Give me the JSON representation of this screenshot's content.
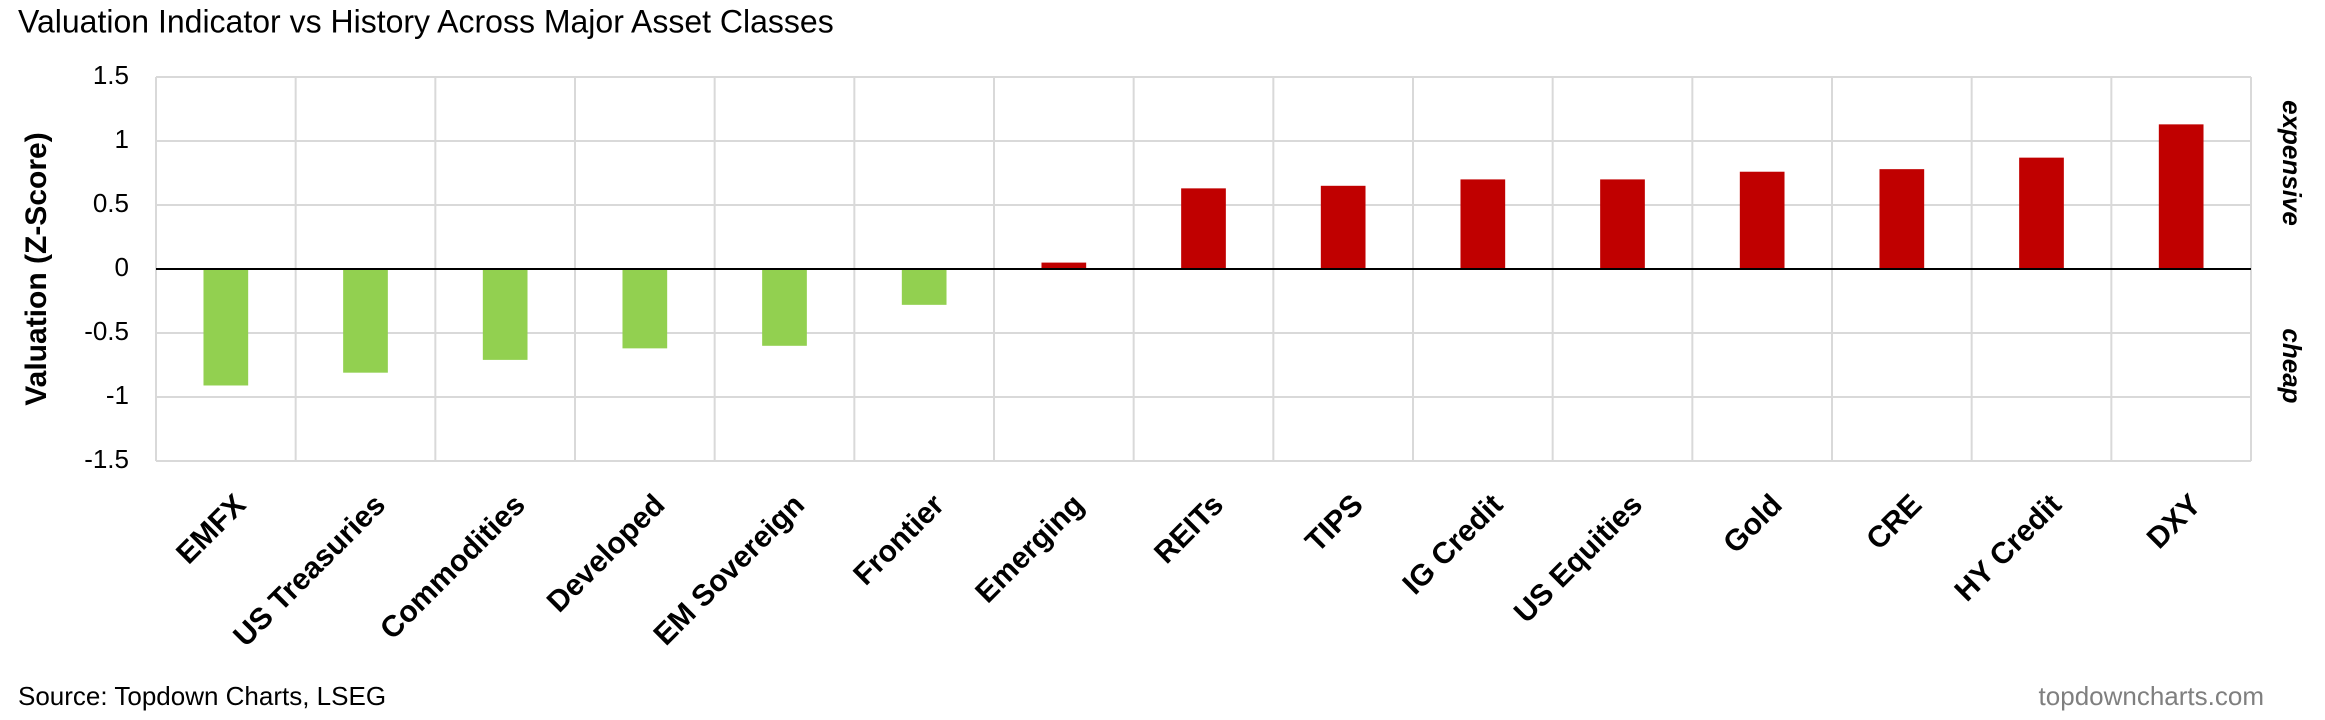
{
  "chart_data": {
    "type": "bar",
    "title": "Valuation Indicator vs History Across Major Asset Classes",
    "y_label": "Valuation (Z-Score)",
    "annotations": [
      "expensive",
      "cheap"
    ],
    "source": "Source: Topdown Charts, LSEG",
    "watermark": "topdowncharts.com",
    "categories": [
      "EMFX",
      "US Treasuries",
      "Commodities",
      "Developed",
      "EM Sovereign",
      "Frontier",
      "Emerging",
      "REITs",
      "TIPS",
      "IG Credit",
      "US Equities",
      "Gold",
      "CRE",
      "HY Credit",
      "DXY"
    ],
    "values": [
      -0.91,
      -0.81,
      -0.71,
      -0.62,
      -0.6,
      -0.28,
      0.05,
      0.63,
      0.65,
      0.7,
      0.7,
      0.76,
      0.78,
      0.87,
      1.13
    ],
    "color_positive": "#c00000",
    "color_negative": "#92d050",
    "ylim": [
      -1.5,
      1.5
    ],
    "yticks": [
      1.5,
      1,
      0.5,
      0,
      -0.5,
      -1,
      -1.5
    ],
    "grid": true
  }
}
